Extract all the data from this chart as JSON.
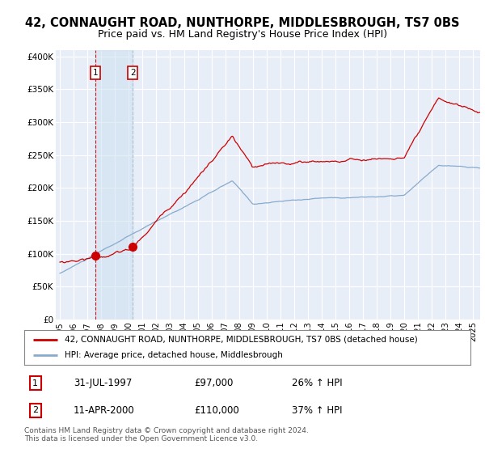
{
  "title": "42, CONNAUGHT ROAD, NUNTHORPE, MIDDLESBROUGH, TS7 0BS",
  "subtitle": "Price paid vs. HM Land Registry's House Price Index (HPI)",
  "ylabel_ticks": [
    "£0",
    "£50K",
    "£100K",
    "£150K",
    "£200K",
    "£250K",
    "£300K",
    "£350K",
    "£400K"
  ],
  "ytick_values": [
    0,
    50000,
    100000,
    150000,
    200000,
    250000,
    300000,
    350000,
    400000
  ],
  "ylim": [
    0,
    410000
  ],
  "xlim_start": 1994.7,
  "xlim_end": 2025.5,
  "sale1": {
    "date_num": 1997.575,
    "price": 97000,
    "label": "1",
    "date_str": "31-JUL-1997",
    "pct": "26%"
  },
  "sale2": {
    "date_num": 2000.283,
    "price": 110000,
    "label": "2",
    "date_str": "11-APR-2000",
    "pct": "37%"
  },
  "legend_line1": "42, CONNAUGHT ROAD, NUNTHORPE, MIDDLESBROUGH, TS7 0BS (detached house)",
  "legend_line2": "HPI: Average price, detached house, Middlesbrough",
  "footnote": "Contains HM Land Registry data © Crown copyright and database right 2024.\nThis data is licensed under the Open Government Licence v3.0.",
  "line_color_red": "#cc0000",
  "line_color_blue": "#88aacc",
  "bg_color": "#e8eef8",
  "grid_color": "#ffffff",
  "title_fontsize": 10.5,
  "subtitle_fontsize": 9,
  "tick_fontsize": 7.5
}
